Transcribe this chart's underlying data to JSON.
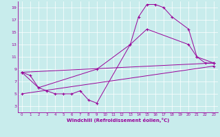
{
  "xlabel": "Windchill (Refroidissement éolien,°C)",
  "background_color": "#c8ecec",
  "line_color": "#990099",
  "xlim": [
    -0.5,
    23.5
  ],
  "ylim": [
    2,
    20
  ],
  "xticks": [
    0,
    1,
    2,
    3,
    4,
    5,
    6,
    7,
    8,
    9,
    10,
    11,
    12,
    13,
    14,
    15,
    16,
    17,
    18,
    19,
    20,
    21,
    22,
    23
  ],
  "yticks": [
    3,
    5,
    7,
    9,
    11,
    13,
    15,
    17,
    19
  ],
  "series": [
    {
      "x": [
        0,
        1,
        2,
        3,
        4,
        5,
        6,
        7,
        8,
        9,
        13,
        14,
        15,
        16,
        17,
        18,
        20,
        21,
        22,
        23
      ],
      "y": [
        8.5,
        8.0,
        6.0,
        5.5,
        5.0,
        5.0,
        5.0,
        5.5,
        4.0,
        3.5,
        13.0,
        17.5,
        19.5,
        19.5,
        19.0,
        17.5,
        15.5,
        11.0,
        10.0,
        10.0
      ]
    },
    {
      "x": [
        0,
        2,
        9,
        13,
        15,
        20,
        21,
        23
      ],
      "y": [
        8.5,
        6.0,
        9.0,
        13.0,
        15.5,
        13.0,
        11.0,
        10.0
      ]
    },
    {
      "x": [
        0,
        23
      ],
      "y": [
        8.5,
        10.0
      ]
    },
    {
      "x": [
        0,
        23
      ],
      "y": [
        5.0,
        9.5
      ]
    }
  ]
}
